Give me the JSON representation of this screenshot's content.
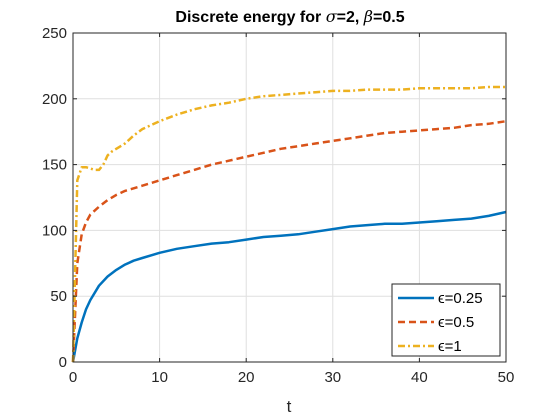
{
  "chart_data": {
    "type": "line",
    "title": "Discrete energy for σ=2, β=0.5",
    "title_parts": {
      "prefix": "Discrete energy for ",
      "sigma_symbol": "σ",
      "sigma_value": "=2, ",
      "beta_symbol": "β",
      "beta_value": "=0.5"
    },
    "xlabel": "t",
    "ylabel": "",
    "xlim": [
      0,
      50
    ],
    "ylim": [
      0,
      250
    ],
    "xticks": [
      0,
      10,
      20,
      30,
      40,
      50
    ],
    "yticks": [
      0,
      50,
      100,
      150,
      200,
      250
    ],
    "xtick_labels": [
      "0",
      "10",
      "20",
      "30",
      "40",
      "50"
    ],
    "ytick_labels": [
      "0",
      "50",
      "100",
      "150",
      "200",
      "250"
    ],
    "grid": true,
    "legend_position": "bottom-right",
    "series": [
      {
        "name": "ϵ=0.25",
        "color": "#0072BD",
        "style": "solid",
        "x": [
          0,
          0.5,
          1,
          1.5,
          2,
          3,
          4,
          5,
          6,
          7,
          8,
          10,
          12,
          14,
          16,
          18,
          20,
          22,
          24,
          26,
          28,
          30,
          32,
          34,
          36,
          38,
          40,
          42,
          44,
          46,
          48,
          50
        ],
        "y": [
          0,
          18,
          30,
          40,
          47,
          58,
          65,
          70,
          74,
          77,
          79,
          83,
          86,
          88,
          90,
          91,
          93,
          95,
          96,
          97,
          99,
          101,
          103,
          104,
          105,
          105,
          106,
          107,
          108,
          109,
          111,
          114
        ]
      },
      {
        "name": "ϵ=0.5",
        "color": "#D95319",
        "style": "dashed",
        "x": [
          0,
          0.5,
          1,
          1.5,
          2,
          3,
          4,
          5,
          6,
          8,
          10,
          12,
          14,
          16,
          18,
          20,
          22,
          24,
          26,
          28,
          30,
          32,
          34,
          36,
          38,
          40,
          42,
          44,
          46,
          48,
          50
        ],
        "y": [
          0,
          75,
          97,
          106,
          112,
          118,
          123,
          127,
          130,
          134,
          138,
          142,
          146,
          150,
          153,
          156,
          159,
          162,
          164,
          166,
          168,
          170,
          172,
          174,
          175,
          176,
          177,
          178,
          180,
          181,
          183
        ]
      },
      {
        "name": "ϵ=1",
        "color": "#EDB120",
        "style": "dashdot",
        "x": [
          0,
          0.5,
          1,
          1.5,
          2,
          2.5,
          3,
          3.5,
          4,
          4.5,
          5,
          6,
          7,
          8,
          10,
          12,
          14,
          16,
          18,
          20,
          22,
          24,
          26,
          28,
          30,
          32,
          34,
          36,
          38,
          40,
          42,
          44,
          46,
          48,
          50
        ],
        "y": [
          0,
          138,
          148,
          148,
          147,
          146,
          146,
          150,
          157,
          160,
          162,
          166,
          172,
          177,
          183,
          188,
          192,
          195,
          197,
          200,
          202,
          203,
          204,
          205,
          206,
          206,
          207,
          207,
          207,
          208,
          208,
          208,
          208,
          209,
          209
        ]
      }
    ]
  },
  "colors": {
    "axis": "#262626",
    "grid": "#dfdfdf",
    "background": "#ffffff"
  }
}
